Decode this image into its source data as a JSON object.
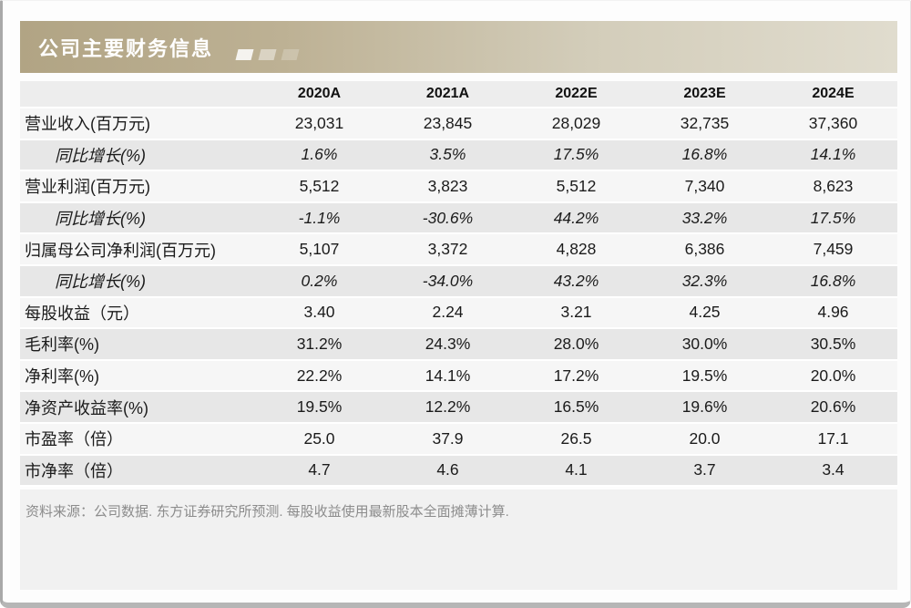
{
  "title_bar": {
    "title": "公司主要财务信息",
    "decoration": "three-fading-squares"
  },
  "chart_data": {
    "type": "table",
    "title": "公司主要财务信息",
    "columns": [
      "2020A",
      "2021A",
      "2022E",
      "2023E",
      "2024E"
    ],
    "rows": [
      {
        "label": "营业收入(百万元)",
        "style": "normal",
        "values": [
          "23,031",
          "23,845",
          "28,029",
          "32,735",
          "37,360"
        ]
      },
      {
        "label": "同比增长(%)",
        "style": "growth",
        "values": [
          "1.6%",
          "3.5%",
          "17.5%",
          "16.8%",
          "14.1%"
        ]
      },
      {
        "label": "营业利润(百万元)",
        "style": "normal",
        "values": [
          "5,512",
          "3,823",
          "5,512",
          "7,340",
          "8,623"
        ]
      },
      {
        "label": "同比增长(%)",
        "style": "growth",
        "values": [
          "-1.1%",
          "-30.6%",
          "44.2%",
          "33.2%",
          "17.5%"
        ]
      },
      {
        "label": "归属母公司净利润(百万元)",
        "style": "normal",
        "values": [
          "5,107",
          "3,372",
          "4,828",
          "6,386",
          "7,459"
        ]
      },
      {
        "label": "同比增长(%)",
        "style": "growth",
        "values": [
          "0.2%",
          "-34.0%",
          "43.2%",
          "32.3%",
          "16.8%"
        ]
      },
      {
        "label": "每股收益（元）",
        "style": "normal",
        "values": [
          "3.40",
          "2.24",
          "3.21",
          "4.25",
          "4.96"
        ]
      },
      {
        "label": "毛利率(%)",
        "style": "normal",
        "values": [
          "31.2%",
          "24.3%",
          "28.0%",
          "30.0%",
          "30.5%"
        ]
      },
      {
        "label": "净利率(%)",
        "style": "normal",
        "values": [
          "22.2%",
          "14.1%",
          "17.2%",
          "19.5%",
          "20.0%"
        ]
      },
      {
        "label": "净资产收益率(%)",
        "style": "normal",
        "values": [
          "19.5%",
          "12.2%",
          "16.5%",
          "19.6%",
          "20.6%"
        ]
      },
      {
        "label": "市盈率（倍）",
        "style": "normal",
        "values": [
          "25.0",
          "37.9",
          "26.5",
          "20.0",
          "17.1"
        ]
      },
      {
        "label": "市净率（倍）",
        "style": "normal",
        "values": [
          "4.7",
          "4.6",
          "4.1",
          "3.7",
          "3.4"
        ]
      }
    ],
    "layout": {
      "striping": "rows alternate light/dark, separated by thin white lines",
      "value_alignment": "center",
      "growth_rows_italic_indented": true,
      "legend_position": "none",
      "grid": false
    }
  },
  "footer": {
    "source_note": "资料来源：公司数据. 东方证券研究所预测. 每股收益使用最新股本全面摊薄计算."
  },
  "colors": {
    "title_bar_gradient_left": "#b1a484",
    "title_bar_gradient_right": "#e0dcce",
    "title_text": "#ffffff",
    "header_row_bg": "#ededed",
    "row_light_bg": "#f6f6f6",
    "row_dark_bg": "#e7e7e7",
    "body_text": "#1b1b1b",
    "footer_bg": "#f1f1f1",
    "footer_text": "#8c8c8c",
    "frame_border": "#a9a9a9"
  }
}
